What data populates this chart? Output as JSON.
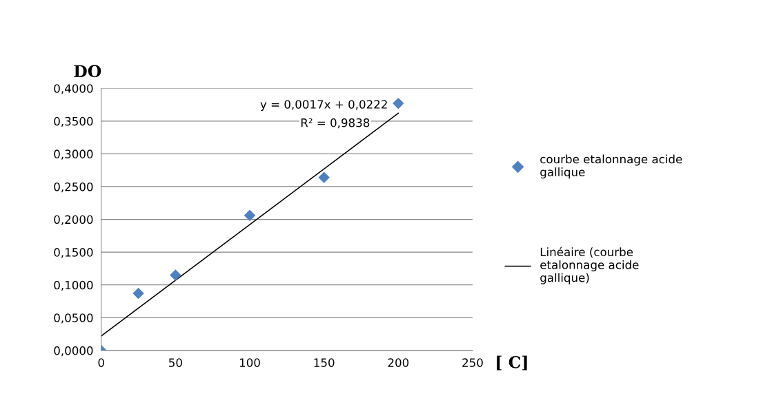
{
  "chart_data": {
    "type": "scatter",
    "xlabel": "[ C]",
    "ylabel": "DO",
    "x": [
      0,
      25,
      50,
      100,
      150,
      200
    ],
    "series": [
      {
        "name": "courbe etalonnage acide gallique",
        "color": "#4f81bd",
        "marker": "diamond",
        "values": [
          0.0,
          0.087,
          0.115,
          0.206,
          0.264,
          0.377
        ]
      },
      {
        "name": "Linéaire (courbe etalonnage acide gallique)",
        "color": "#000000",
        "type": "line",
        "line_style": "solid",
        "x": [
          0,
          200
        ],
        "values": [
          0.022,
          0.362
        ]
      }
    ],
    "annotations": [
      "y = 0,0017x + 0,0222",
      "R² = 0,9838"
    ],
    "xlim": [
      0,
      250
    ],
    "xticks": [
      0,
      50,
      100,
      150,
      200,
      250
    ],
    "ylim": [
      0,
      0.4
    ],
    "yticks": [
      {
        "value": 0,
        "label": "0,0000"
      },
      {
        "value": 0.05,
        "label": "0,0500"
      },
      {
        "value": 0.1,
        "label": "0,1000"
      },
      {
        "value": 0.15,
        "label": "0,1500"
      },
      {
        "value": 0.2,
        "label": "0,2000"
      },
      {
        "value": 0.25,
        "label": "0,2500"
      },
      {
        "value": 0.3,
        "label": "0,3000"
      },
      {
        "value": 0.35,
        "label": "0,3500"
      },
      {
        "value": 0.4,
        "label": "0,4000"
      }
    ],
    "grid": "y",
    "legend": "right"
  }
}
